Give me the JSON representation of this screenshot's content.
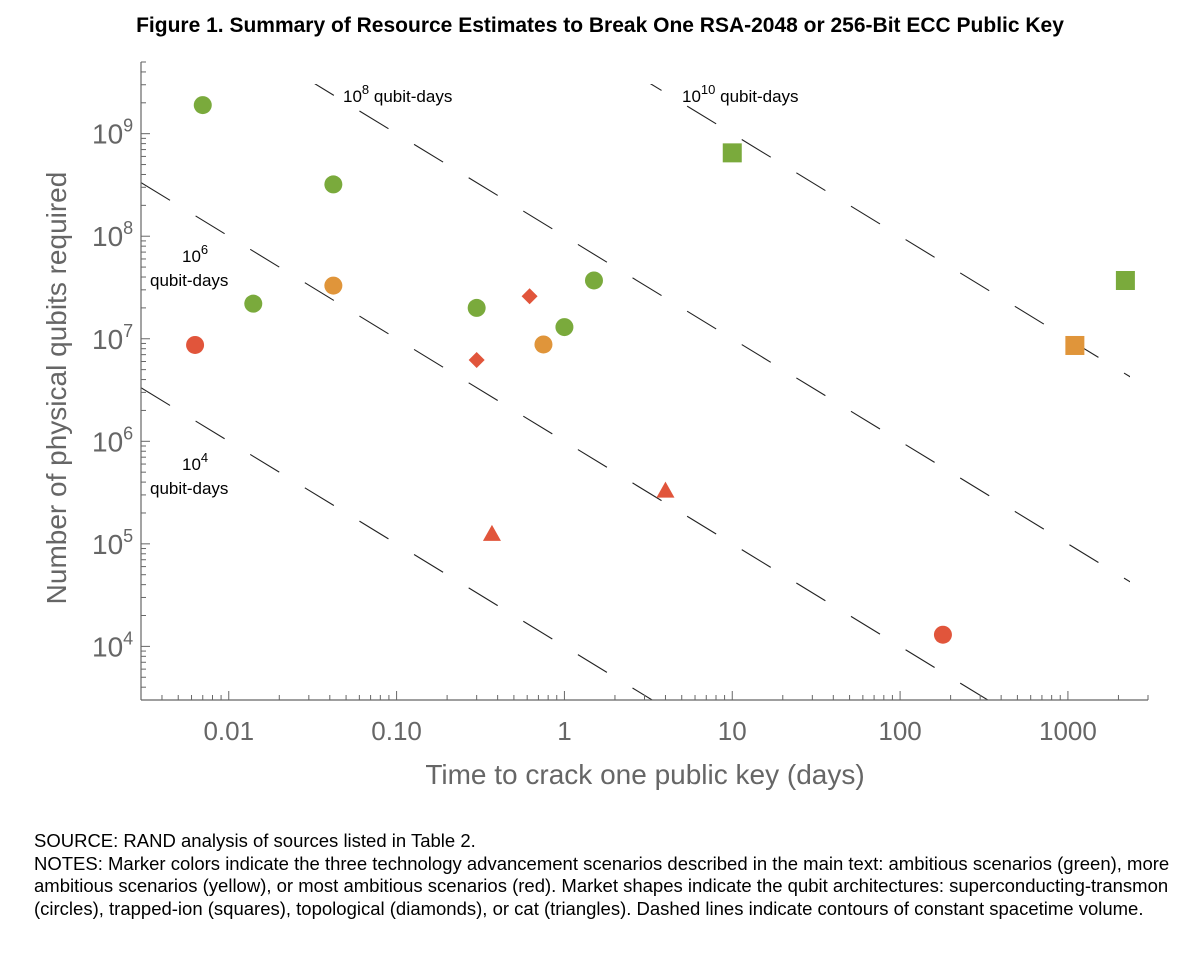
{
  "figure": {
    "title": "Figure 1. Summary of Resource Estimates to Break One RSA-2048 or 256-Bit ECC Public Key",
    "source": "SOURCE: RAND analysis of sources listed in Table 2.",
    "notes": "NOTES: Marker colors indicate the three technology advancement scenarios described in the main text: ambitious scenarios (green), more ambitious scenarios (yellow), or most ambitious scenarios (red). Market shapes indicate the qubit architectures: superconducting-transmon (circles), trapped-ion (squares), topological (diamonds), or cat (triangles). Dashed lines indicate contours of constant spacetime volume."
  },
  "colors": {
    "green": "#7aaa3c",
    "yellow": "#e0953a",
    "red": "#e1553b",
    "axis": "#666666",
    "contour": "#222222"
  },
  "chart_data": {
    "type": "scatter",
    "xscale": "log",
    "yscale": "log",
    "xlabel": "Time to crack one public key (days)",
    "ylabel": "Number of physical qubits required",
    "xlim": [
      0.003,
      3000
    ],
    "ylim": [
      3000,
      5000000000
    ],
    "xticks": [
      {
        "value": 0.01,
        "label": "0.01"
      },
      {
        "value": 0.1,
        "label": "0.10"
      },
      {
        "value": 1,
        "label": "1"
      },
      {
        "value": 10,
        "label": "10"
      },
      {
        "value": 100,
        "label": "100"
      },
      {
        "value": 1000,
        "label": "1000"
      }
    ],
    "yticks": [
      {
        "value": 10000,
        "base": "10",
        "exp": "4"
      },
      {
        "value": 100000,
        "base": "10",
        "exp": "5"
      },
      {
        "value": 1000000,
        "base": "10",
        "exp": "6"
      },
      {
        "value": 10000000,
        "base": "10",
        "exp": "7"
      },
      {
        "value": 100000000,
        "base": "10",
        "exp": "8"
      },
      {
        "value": 1000000000,
        "base": "10",
        "exp": "9"
      }
    ],
    "contours": [
      {
        "value": 10000,
        "label_base": "10",
        "label_exp": "4",
        "label_text": "qubit-days"
      },
      {
        "value": 1000000,
        "label_base": "10",
        "label_exp": "6",
        "label_text": "qubit-days"
      },
      {
        "value": 100000000,
        "label_base": "10",
        "label_exp": "8",
        "label_text": "qubit-days"
      },
      {
        "value": 10000000000,
        "label_base": "10",
        "label_exp": "10",
        "label_text": "qubit-days"
      }
    ],
    "points": [
      {
        "x": 0.007,
        "y": 1900000000,
        "color": "green",
        "shape": "circle"
      },
      {
        "x": 0.042,
        "y": 320000000,
        "color": "green",
        "shape": "circle"
      },
      {
        "x": 0.014,
        "y": 22000000,
        "color": "green",
        "shape": "circle"
      },
      {
        "x": 0.3,
        "y": 20000000,
        "color": "green",
        "shape": "circle"
      },
      {
        "x": 1.0,
        "y": 13000000,
        "color": "green",
        "shape": "circle"
      },
      {
        "x": 1.5,
        "y": 37000000,
        "color": "green",
        "shape": "circle"
      },
      {
        "x": 10,
        "y": 650000000,
        "color": "green",
        "shape": "square"
      },
      {
        "x": 2200,
        "y": 37000000,
        "color": "green",
        "shape": "square"
      },
      {
        "x": 0.042,
        "y": 33000000,
        "color": "yellow",
        "shape": "circle"
      },
      {
        "x": 0.75,
        "y": 8800000,
        "color": "yellow",
        "shape": "circle"
      },
      {
        "x": 1100,
        "y": 8600000,
        "color": "yellow",
        "shape": "square"
      },
      {
        "x": 0.0063,
        "y": 8700000,
        "color": "red",
        "shape": "circle"
      },
      {
        "x": 180,
        "y": 13000,
        "color": "red",
        "shape": "circle"
      },
      {
        "x": 0.3,
        "y": 6200000,
        "color": "red",
        "shape": "diamond"
      },
      {
        "x": 0.62,
        "y": 26000000,
        "color": "red",
        "shape": "diamond"
      },
      {
        "x": 0.37,
        "y": 125000,
        "color": "red",
        "shape": "triangle"
      },
      {
        "x": 4,
        "y": 330000,
        "color": "red",
        "shape": "triangle"
      }
    ]
  }
}
